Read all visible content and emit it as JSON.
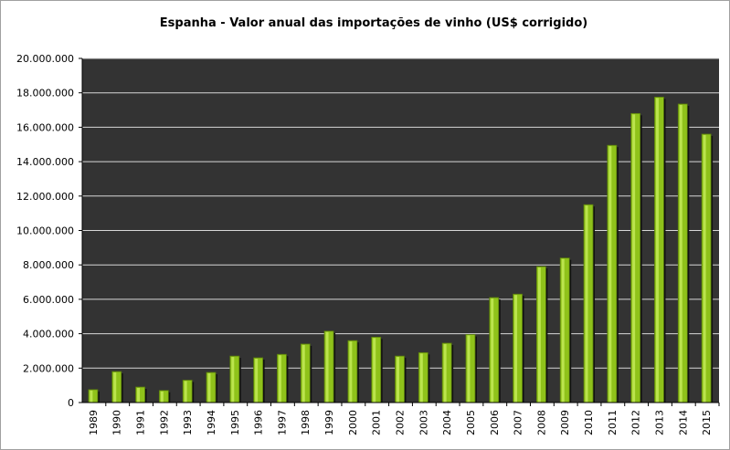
{
  "chart_data": {
    "type": "bar",
    "title": "Espanha - Valor anual das importações de vinho (US$ corrigido)",
    "xlabel": "",
    "ylabel": "",
    "categories": [
      "1989",
      "1990",
      "1991",
      "1992",
      "1993",
      "1994",
      "1995",
      "1996",
      "1997",
      "1998",
      "1999",
      "2000",
      "2001",
      "2002",
      "2003",
      "2004",
      "2005",
      "2006",
      "2007",
      "2008",
      "2009",
      "2010",
      "2011",
      "2012",
      "2013",
      "2014",
      "2015"
    ],
    "values": [
      750000,
      1800000,
      900000,
      700000,
      1300000,
      1750000,
      2700000,
      2600000,
      2800000,
      3400000,
      4150000,
      3600000,
      3800000,
      2700000,
      2900000,
      3450000,
      3950000,
      6100000,
      6300000,
      7900000,
      8400000,
      11500000,
      14950000,
      16800000,
      17750000,
      17350000,
      15600000
    ],
    "ylim": [
      0,
      20000000
    ],
    "yticks": [
      "0",
      "2.000.000",
      "4.000.000",
      "6.000.000",
      "8.000.000",
      "10.000.000",
      "12.000.000",
      "14.000.000",
      "16.000.000",
      "18.000.000",
      "20.000.000"
    ],
    "grid": true,
    "legend": "none",
    "colors": {
      "plot_background": "#333333",
      "bar_fill": "#8fc21a",
      "bar_highlight": "#c6ec5a",
      "bar_shadow": "#5a7d0c",
      "gridline": "#d8d8d8"
    }
  }
}
